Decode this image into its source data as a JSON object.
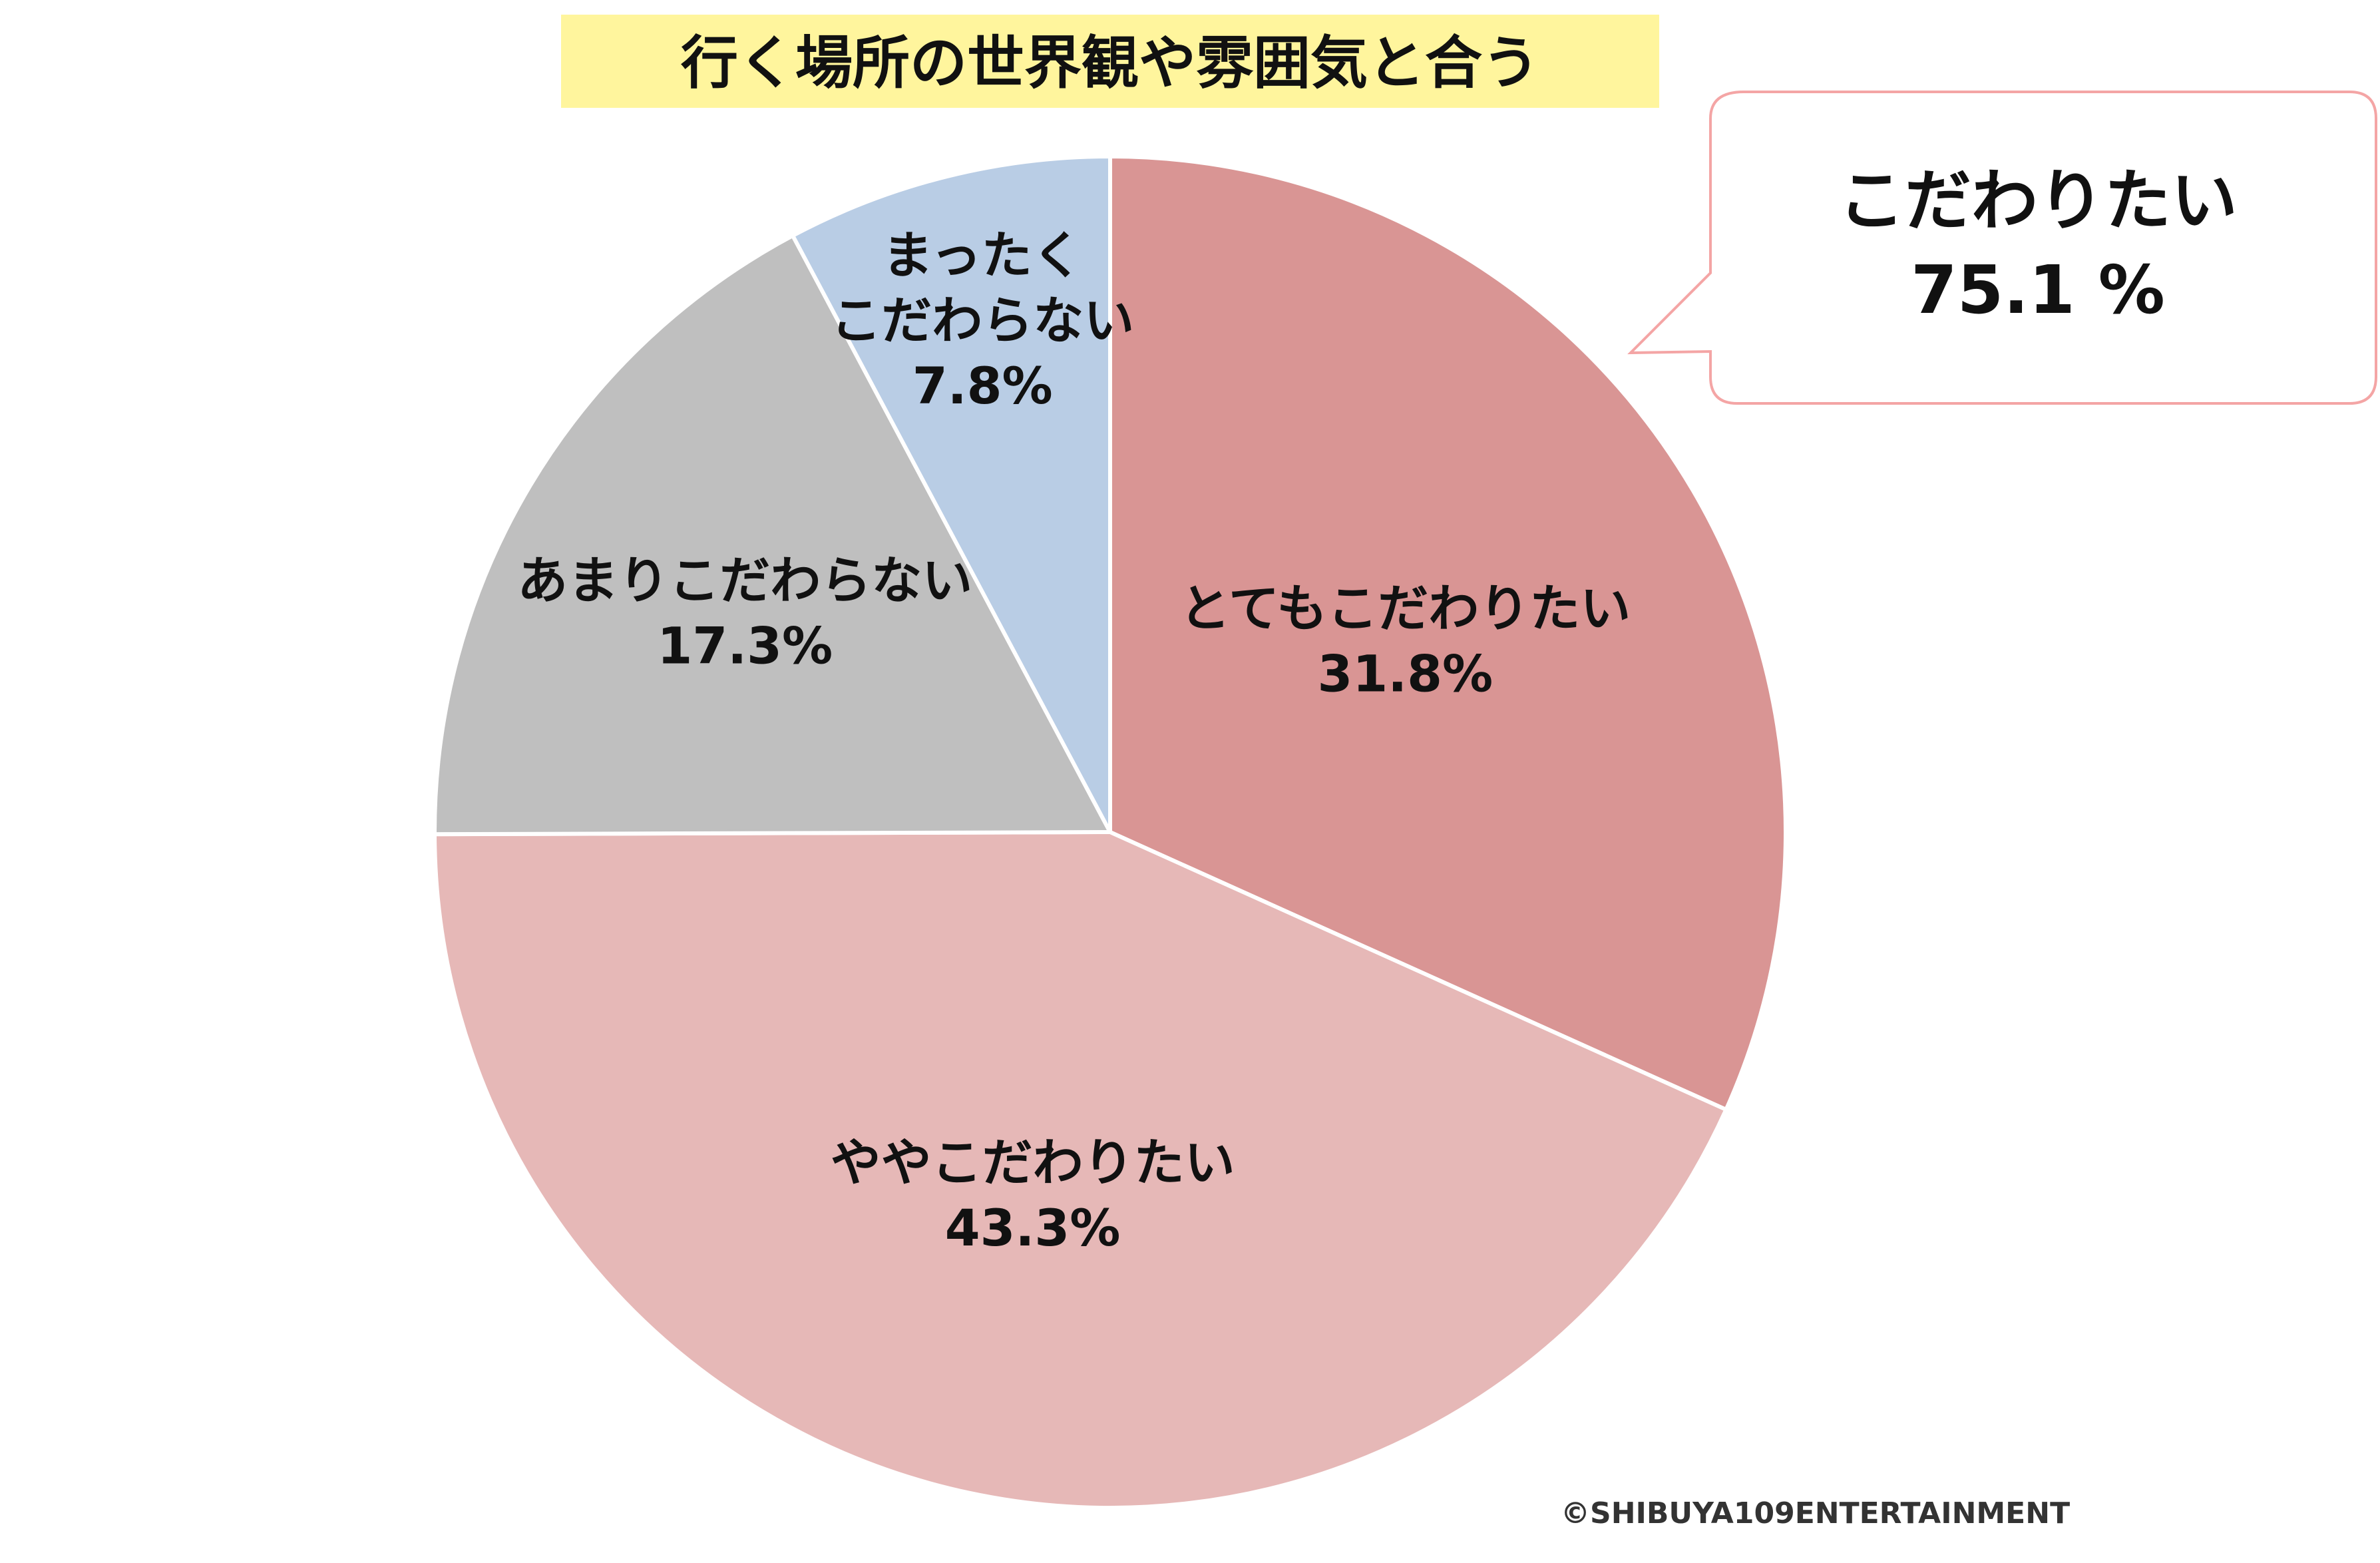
{
  "chart_data": {
    "type": "pie",
    "title": "行く場所の世界観や雰囲気と合う",
    "slices": [
      {
        "label_lines": [
          "とてもこだわりたい"
        ],
        "value": 31.8,
        "value_text": "31.8%",
        "color": "#d99594"
      },
      {
        "label_lines": [
          "ややこだわりたい"
        ],
        "value": 43.3,
        "value_text": "43.3%",
        "color": "#e6b8b7"
      },
      {
        "label_lines": [
          "あまりこだわらない"
        ],
        "value": 17.3,
        "value_text": "17.3%",
        "color": "#bfbfbf"
      },
      {
        "label_lines": [
          "まったく",
          "こだわらない"
        ],
        "value": 7.8,
        "value_text": "7.8%",
        "color": "#b9cde5"
      }
    ],
    "start": "12 o'clock",
    "direction": "clockwise",
    "legend": "none",
    "callout": {
      "label": "こだわりたい",
      "value_text": "75.1 %",
      "border_color": "#f4a5a5"
    }
  },
  "copyright": "©SHIBUYA109ENTERTAINMENT"
}
